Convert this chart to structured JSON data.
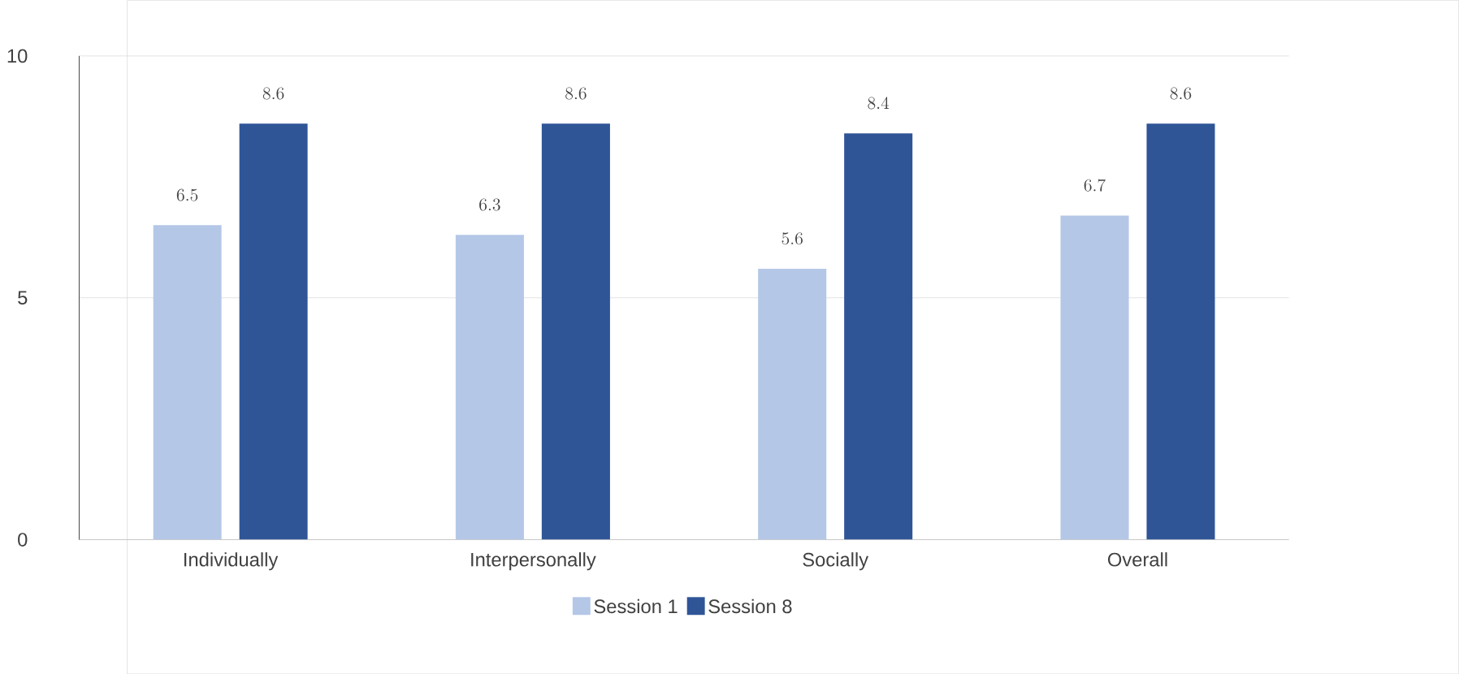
{
  "chart_data": {
    "type": "bar",
    "categories": [
      "Individually",
      "Interpersonally",
      "Socially",
      "Overall"
    ],
    "series": [
      {
        "name": "Session 1",
        "color": "#b4c7e7",
        "values": [
          6.5,
          6.3,
          5.6,
          6.7
        ]
      },
      {
        "name": "Session 8",
        "color": "#2f5597",
        "values": [
          8.6,
          8.6,
          8.4,
          8.6
        ]
      }
    ],
    "ylim": [
      0,
      10
    ],
    "yticks": [
      0,
      5,
      10
    ],
    "grid": "y",
    "legend": "bottom",
    "data_labels": true
  }
}
